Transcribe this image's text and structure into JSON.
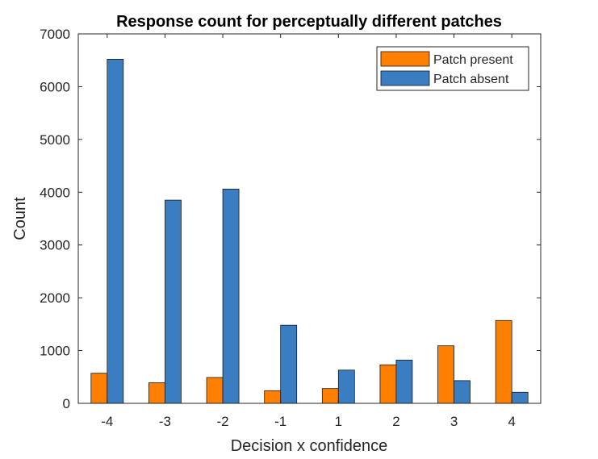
{
  "chart_data": {
    "type": "bar",
    "title": "Response count for perceptually different patches",
    "xlabel": "Decision x confidence",
    "ylabel": "Count",
    "categories": [
      "-4",
      "-3",
      "-2",
      "-1",
      "1",
      "2",
      "3",
      "4"
    ],
    "ylim": [
      0,
      7000
    ],
    "yticks": [
      "0",
      "1000",
      "2000",
      "3000",
      "4000",
      "5000",
      "6000",
      "7000"
    ],
    "grid": false,
    "legend_position": "top-right",
    "series": [
      {
        "name": "Patch present",
        "color": "#ff7f00",
        "values": [
          570,
          390,
          490,
          240,
          280,
          730,
          1090,
          1570
        ]
      },
      {
        "name": "Patch absent",
        "color": "#3a7dc0",
        "values": [
          6520,
          3850,
          4060,
          1480,
          630,
          820,
          430,
          210
        ]
      }
    ]
  }
}
